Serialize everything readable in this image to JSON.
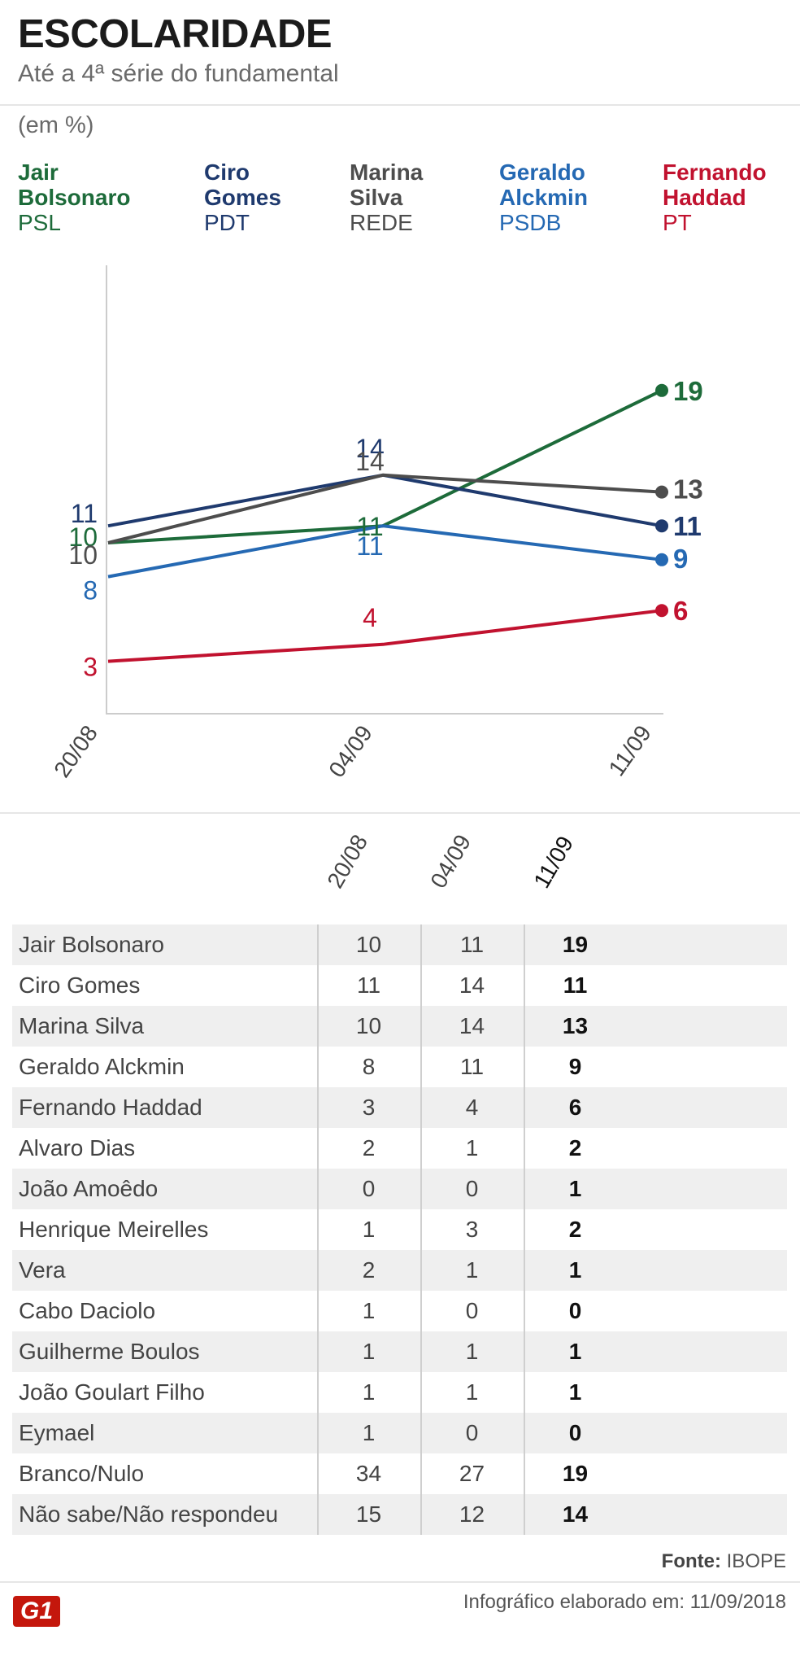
{
  "header": {
    "title": "ESCOLARIDADE",
    "subtitle": "Até a 4ª série do fundamental",
    "unit": "(em %)"
  },
  "legend": [
    {
      "name_line1": "Jair",
      "name_line2": "Bolsonaro",
      "party": "PSL",
      "color": "#1d6b3a"
    },
    {
      "name_line1": "Ciro",
      "name_line2": "Gomes",
      "party": "PDT",
      "color": "#1f3a6e"
    },
    {
      "name_line1": "Marina",
      "name_line2": "Silva",
      "party": "REDE",
      "color": "#4d4d4d"
    },
    {
      "name_line1": "Geraldo",
      "name_line2": "Alckmin",
      "party": "PSDB",
      "color": "#2569b3"
    },
    {
      "name_line1": "Fernando",
      "name_line2": "Haddad",
      "party": "PT",
      "color": "#c1122f"
    }
  ],
  "chart_data": {
    "type": "line",
    "title": "ESCOLARIDADE",
    "subtitle": "Até a 4ª série do fundamental",
    "ylabel": "(em %)",
    "categories": [
      "20/08",
      "04/09",
      "11/09"
    ],
    "ylim": [
      0,
      35
    ],
    "series": [
      {
        "name": "Jair Bolsonaro",
        "party": "PSL",
        "values": [
          10,
          11,
          19
        ],
        "color": "#1d6b3a"
      },
      {
        "name": "Ciro Gomes",
        "party": "PDT",
        "values": [
          11,
          14,
          11
        ],
        "color": "#1f3a6e"
      },
      {
        "name": "Marina Silva",
        "party": "REDE",
        "values": [
          10,
          14,
          13
        ],
        "color": "#4d4d4d"
      },
      {
        "name": "Geraldo Alckmin",
        "party": "PSDB",
        "values": [
          8,
          11,
          9
        ],
        "color": "#2569b3"
      },
      {
        "name": "Fernando Haddad",
        "party": "PT",
        "values": [
          3,
          4,
          6
        ],
        "color": "#c1122f"
      }
    ]
  },
  "table": {
    "columns": [
      "20/08",
      "04/09",
      "11/09"
    ],
    "rows": [
      {
        "name": "Jair Bolsonaro",
        "values": [
          "10",
          "11",
          "19"
        ]
      },
      {
        "name": "Ciro Gomes",
        "values": [
          "11",
          "14",
          "11"
        ]
      },
      {
        "name": "Marina Silva",
        "values": [
          "10",
          "14",
          "13"
        ]
      },
      {
        "name": "Geraldo Alckmin",
        "values": [
          "8",
          "11",
          "9"
        ]
      },
      {
        "name": "Fernando Haddad",
        "values": [
          "3",
          "4",
          "6"
        ]
      },
      {
        "name": "Alvaro Dias",
        "values": [
          "2",
          "1",
          "2"
        ]
      },
      {
        "name": "João Amoêdo",
        "values": [
          "0",
          "0",
          "1"
        ]
      },
      {
        "name": "Henrique Meirelles",
        "values": [
          "1",
          "3",
          "2"
        ]
      },
      {
        "name": "Vera",
        "values": [
          "2",
          "1",
          "1"
        ]
      },
      {
        "name": "Cabo Daciolo",
        "values": [
          "1",
          "0",
          "0"
        ]
      },
      {
        "name": "Guilherme Boulos",
        "values": [
          "1",
          "1",
          "1"
        ]
      },
      {
        "name": "João Goulart Filho",
        "values": [
          "1",
          "1",
          "1"
        ]
      },
      {
        "name": "Eymael",
        "values": [
          "1",
          "0",
          "0"
        ]
      },
      {
        "name": "Branco/Nulo",
        "values": [
          "34",
          "27",
          "19"
        ]
      },
      {
        "name": "Não sabe/Não respondeu",
        "values": [
          "15",
          "12",
          "14"
        ]
      }
    ]
  },
  "footer": {
    "source_label": "Fonte:",
    "source_value": "IBOPE",
    "note": "Infográfico elaborado em: 11/09/2018",
    "logo_text": "G1"
  }
}
